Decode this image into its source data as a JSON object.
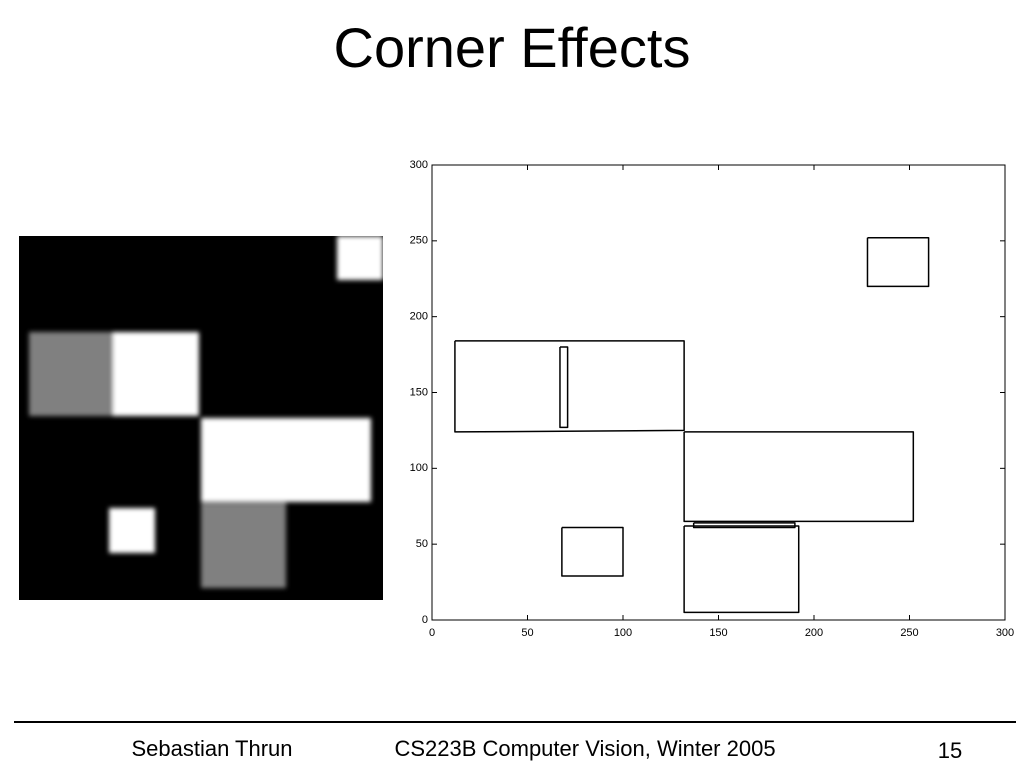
{
  "title": "Corner Effects",
  "chart_data": {
    "type": "line",
    "color": "#000000",
    "xlim": [
      0,
      300
    ],
    "ylim": [
      0,
      300
    ],
    "xticks": [
      0,
      50,
      100,
      150,
      200,
      250,
      300
    ],
    "yticks": [
      0,
      50,
      100,
      150,
      200,
      250,
      300
    ],
    "series": [
      {
        "x": [
          12,
          132,
          132,
          12,
          12
        ],
        "values": [
          184,
          184,
          125,
          124,
          184
        ]
      },
      {
        "x": [
          132,
          252,
          252,
          132,
          132
        ],
        "values": [
          124,
          124,
          65,
          65,
          124
        ]
      },
      {
        "x": [
          132,
          192,
          192,
          132,
          132
        ],
        "values": [
          62,
          62,
          5,
          5,
          62
        ]
      },
      {
        "x": [
          67,
          71,
          71,
          67,
          67
        ],
        "values": [
          180,
          180,
          127,
          127,
          180
        ]
      },
      {
        "x": [
          228,
          260,
          260,
          228,
          228
        ],
        "values": [
          252,
          252,
          220,
          220,
          252
        ]
      },
      {
        "x": [
          68,
          100,
          100,
          68,
          68
        ],
        "values": [
          61,
          61,
          29,
          29,
          61
        ]
      },
      {
        "x": [
          137,
          190,
          190,
          137,
          137
        ],
        "values": [
          64,
          64,
          61,
          61,
          64
        ]
      }
    ]
  },
  "footer": {
    "author": "Sebastian Thrun",
    "course": "CS223B Computer Vision, Winter 2005",
    "page": "15"
  }
}
